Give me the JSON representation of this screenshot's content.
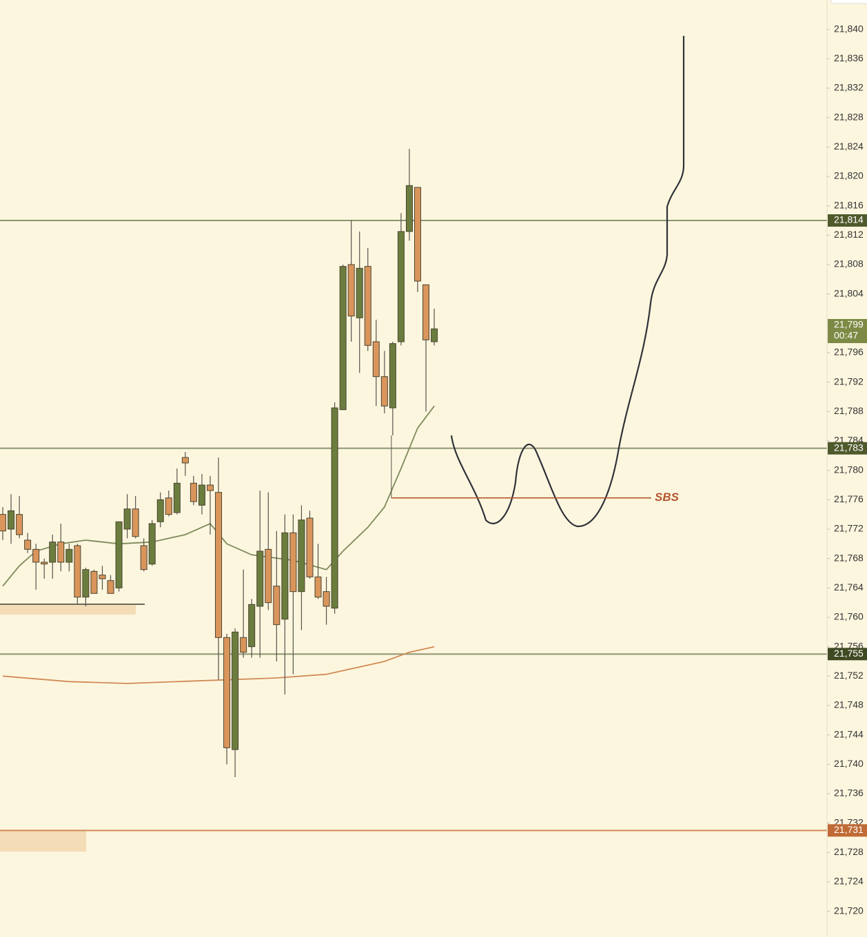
{
  "chart_data": {
    "type": "candlestick",
    "open": [
      21774,
      21772,
      21774,
      21770.5,
      21769.25,
      21767.5,
      21767.5,
      21770.25,
      21767.5,
      21769.75,
      21762.75,
      21766.25,
      21765.75,
      21765,
      21764,
      21772,
      21774.75,
      21769.75,
      21767.25,
      21773,
      21776.25,
      21774.25,
      21781.75,
      21778.25,
      21775.25,
      21778,
      21777,
      21757.25,
      21742,
      21757.25,
      21756,
      21761.5,
      21769.25,
      21764.25,
      21759.75,
      21771.5,
      21763.5,
      21773.5,
      21765.5,
      21763.5,
      21761.25,
      21788.25,
      21808,
      21800.75,
      21807.75,
      21797.5,
      21792.75,
      21788.5,
      21797.5,
      21812.5,
      21818.5,
      21805.25,
      21797.5
    ],
    "high": [
      21775,
      21776.75,
      21776.5,
      21771.5,
      21770,
      21768,
      21771.25,
      21772.75,
      21770,
      21770,
      21766.75,
      21766.5,
      21767,
      21765.75,
      21773,
      21776.75,
      21776.5,
      21770.75,
      21773.25,
      21777,
      21777.25,
      21780.25,
      21782.5,
      21779.25,
      21779.5,
      21779.25,
      21781.75,
      21757.75,
      21758.5,
      21766.5,
      21762.5,
      21777.25,
      21777,
      21771.75,
      21774,
      21774,
      21775.25,
      21774.5,
      21770,
      21765.5,
      21789.25,
      21808,
      21814,
      21812.5,
      21810.25,
      21800.5,
      21796.25,
      21797.5,
      21815,
      21823.75,
      21818.5,
      21805.25,
      21802
    ],
    "low": [
      21770.5,
      21770,
      21770.75,
      21768.75,
      21763.75,
      21765.25,
      21765.25,
      21766.25,
      21766.25,
      21761.75,
      21761.5,
      21763.25,
      21763.75,
      21763.25,
      21763.5,
      21770.75,
      21770.75,
      21766.25,
      21767,
      21772.25,
      21773.75,
      21774,
      21779.25,
      21775.25,
      21774,
      21771.25,
      21751.5,
      21740,
      21738.25,
      21754.5,
      21754.5,
      21754.5,
      21761,
      21754,
      21749.5,
      21752.25,
      21758.25,
      21765.25,
      21762.5,
      21759,
      21760.5,
      21788.25,
      21797.5,
      21793.25,
      21796.25,
      21788.75,
      21787.75,
      21784.75,
      21797,
      21811.25,
      21804.25,
      21788,
      21797
    ],
    "close": [
      21771.75,
      21774.5,
      21771.25,
      21769.25,
      21767.5,
      21767.25,
      21770.25,
      21767.5,
      21769.25,
      21762.75,
      21766.5,
      21763.25,
      21765.25,
      21763.25,
      21773,
      21774.75,
      21771,
      21766.5,
      21772.75,
      21776,
      21774,
      21778.25,
      21781,
      21775.75,
      21778,
      21777.25,
      21757.25,
      21742.25,
      21758,
      21755.25,
      21761.75,
      21769,
      21762,
      21759,
      21771.5,
      21763.5,
      21773.25,
      21765.5,
      21762.75,
      21761.5,
      21788.5,
      21807.75,
      21801,
      21807.5,
      21797,
      21792.75,
      21788.75,
      21797.25,
      21812.5,
      21818.75,
      21805.75,
      21797.75,
      21799.25
    ],
    "up_color": "#6b7d3e",
    "down_color": "#d9955b",
    "ylim": [
      21716.5,
      21844
    ],
    "yticks": [
      {
        "value": 21840,
        "label": "21,840"
      },
      {
        "value": 21836,
        "label": "21,836"
      },
      {
        "value": 21832,
        "label": "21,832"
      },
      {
        "value": 21828,
        "label": "21,828"
      },
      {
        "value": 21824,
        "label": "21,824"
      },
      {
        "value": 21820,
        "label": "21,820"
      },
      {
        "value": 21816,
        "label": "21,816"
      },
      {
        "value": 21812,
        "label": "21,812"
      },
      {
        "value": 21808,
        "label": "21,808"
      },
      {
        "value": 21804,
        "label": "21,804"
      },
      {
        "value": 21800,
        "label": "21,800"
      },
      {
        "value": 21796,
        "label": "21,796"
      },
      {
        "value": 21792,
        "label": "21,792"
      },
      {
        "value": 21788,
        "label": "21,788"
      },
      {
        "value": 21784,
        "label": "21,784"
      },
      {
        "value": 21780,
        "label": "21,780"
      },
      {
        "value": 21776,
        "label": "21,776"
      },
      {
        "value": 21772,
        "label": "21,772"
      },
      {
        "value": 21768,
        "label": "21,768"
      },
      {
        "value": 21764,
        "label": "21,764"
      },
      {
        "value": 21760,
        "label": "21,760"
      },
      {
        "value": 21756,
        "label": "21,756"
      },
      {
        "value": 21752,
        "label": "21,752"
      },
      {
        "value": 21748,
        "label": "21,748"
      },
      {
        "value": 21744,
        "label": "21,744"
      },
      {
        "value": 21740,
        "label": "21,740"
      },
      {
        "value": 21736,
        "label": "21,736"
      },
      {
        "value": 21732,
        "label": "21,732"
      },
      {
        "value": 21728,
        "label": "21,728"
      },
      {
        "value": 21724,
        "label": "21,724"
      },
      {
        "value": 21720,
        "label": "21,720"
      }
    ],
    "moving_averages": [
      {
        "color": "#7d8a5a",
        "x": [
          0,
          2,
          4,
          7,
          10,
          14,
          18,
          22,
          25,
          27,
          30,
          35,
          39,
          41,
          44,
          46,
          48,
          50,
          52
        ],
        "values": [
          21764.25,
          21767,
          21769,
          21770,
          21770.5,
          21770,
          21770.25,
          21771.25,
          21772.75,
          21770,
          21768.5,
          21767.75,
          21766.5,
          21769,
          21772.25,
          21775,
          21780.25,
          21785.75,
          21788.75
        ]
      },
      {
        "color": "#d08a55",
        "x": [
          0,
          8,
          15,
          21,
          27,
          33,
          39,
          42,
          46,
          49,
          52
        ],
        "values": [
          21752,
          21751.25,
          21751,
          21751.25,
          21751.5,
          21751.75,
          21752.25,
          21753,
          21754,
          21755.25,
          21756
        ]
      }
    ],
    "levels": [
      {
        "value": 21814,
        "label": "21,814",
        "color": "#8b9470",
        "label_color": "#4f5a2c"
      },
      {
        "value": 21783,
        "label": "21,783",
        "color": "#8b9470",
        "label_color": "#4f5a2c"
      },
      {
        "value": 21755,
        "label": "21,755",
        "color": "#8b9470",
        "label_color": "#3f4a22"
      },
      {
        "value": 21731,
        "label": "21,731",
        "color": "#d08a55",
        "label_color": "#c06a35"
      }
    ],
    "current_price": {
      "value": 21799,
      "label": "21,799",
      "countdown": "00:47",
      "color": "#7d8a45"
    },
    "annotations": [
      {
        "text": "SBS",
        "value": 21776.25,
        "color": "#b3552e"
      }
    ]
  }
}
